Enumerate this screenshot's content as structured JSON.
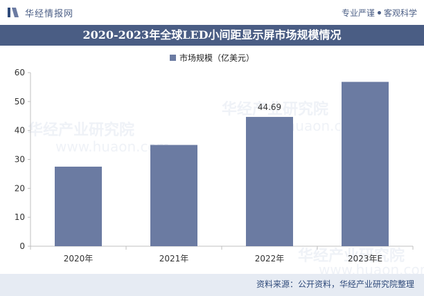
{
  "header": {
    "brand": "华经情报网",
    "slogan_left": "专业严谨",
    "slogan_right": "客观科学"
  },
  "watermark": {
    "text": "华经产业研究院",
    "url": "www.huaon.com"
  },
  "footer": {
    "source": "资料来源：公开资料，华经产业研究院整理"
  },
  "colors": {
    "bar": "#6b7ba2",
    "title_bg": "#4a5d84",
    "footer_bg": "#e6ebf3"
  },
  "chart_data": {
    "type": "bar",
    "title": "2020-2023年全球LED小间距显示屏市场规模情况",
    "categories": [
      "2020年",
      "2021年",
      "2022年",
      "2023年E"
    ],
    "series": [
      {
        "name": "市场规模（亿美元）",
        "values": [
          27.5,
          35,
          44.69,
          56.8
        ],
        "data_labels": [
          "",
          "",
          "44.69",
          ""
        ]
      }
    ],
    "ylim": [
      0,
      60
    ],
    "yticks": [
      "0",
      "10",
      "20",
      "30",
      "40",
      "50",
      "60"
    ],
    "legend_position": "top",
    "grid": false
  }
}
